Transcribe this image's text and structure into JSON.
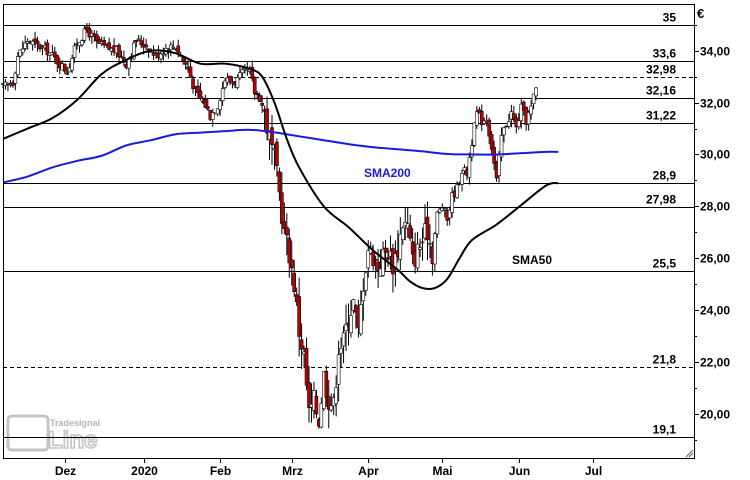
{
  "chart_data": {
    "type": "candlestick",
    "currency_label": "€",
    "ylim": [
      18.3,
      35.8
    ],
    "y_ticks": [
      {
        "value": 20,
        "label": "20,00"
      },
      {
        "value": 22,
        "label": "22,00"
      },
      {
        "value": 24,
        "label": "24,00"
      },
      {
        "value": 26,
        "label": "26,00"
      },
      {
        "value": 28,
        "label": "28,00"
      },
      {
        "value": 30,
        "label": "30,00"
      },
      {
        "value": 32,
        "label": "32,00"
      },
      {
        "value": 34,
        "label": "34,00"
      }
    ],
    "x_ticks": [
      {
        "value": 25,
        "label": "Dez"
      },
      {
        "value": 57,
        "label": "2020"
      },
      {
        "value": 88,
        "label": "Feb"
      },
      {
        "value": 117,
        "label": "Mrz"
      },
      {
        "value": 148,
        "label": "Apr"
      },
      {
        "value": 178,
        "label": "Mai"
      },
      {
        "value": 209,
        "label": "Jun"
      },
      {
        "value": 239,
        "label": "Jul"
      }
    ],
    "xlim": [
      0,
      280
    ],
    "levels": [
      {
        "value": 35,
        "label": "35",
        "style": "solid"
      },
      {
        "value": 33.6,
        "label": "33,6",
        "style": "solid"
      },
      {
        "value": 32.98,
        "label": "32,98",
        "style": "dashed"
      },
      {
        "value": 32.16,
        "label": "32,16",
        "style": "solid"
      },
      {
        "value": 31.22,
        "label": "31,22",
        "style": "solid"
      },
      {
        "value": 28.9,
        "label": "28,9",
        "style": "solid"
      },
      {
        "value": 27.98,
        "label": "27,98",
        "style": "solid"
      },
      {
        "value": 25.5,
        "label": "25,5",
        "style": "solid"
      },
      {
        "value": 21.8,
        "label": "21,8",
        "style": "dashed"
      },
      {
        "value": 19.1,
        "label": "19,1",
        "style": "solid"
      }
    ],
    "close_anchors": [
      [
        0,
        32.6
      ],
      [
        4,
        32.8
      ],
      [
        6,
        33.8
      ],
      [
        10,
        34.4
      ],
      [
        14,
        34.2
      ],
      [
        18,
        34.0
      ],
      [
        22,
        33.6
      ],
      [
        26,
        33.2
      ],
      [
        30,
        34.3
      ],
      [
        34,
        34.8
      ],
      [
        38,
        34.3
      ],
      [
        42,
        34.1
      ],
      [
        46,
        34.0
      ],
      [
        50,
        33.5
      ],
      [
        54,
        34.4
      ],
      [
        58,
        34.2
      ],
      [
        62,
        33.8
      ],
      [
        66,
        34.1
      ],
      [
        70,
        34.2
      ],
      [
        72,
        33.8
      ],
      [
        75,
        33.3
      ],
      [
        78,
        32.4
      ],
      [
        82,
        31.9
      ],
      [
        84,
        31.5
      ],
      [
        87,
        31.9
      ],
      [
        90,
        32.9
      ],
      [
        94,
        32.8
      ],
      [
        98,
        33.2
      ],
      [
        100,
        33.2
      ],
      [
        102,
        32.4
      ],
      [
        104,
        32.2
      ],
      [
        106,
        31.6
      ],
      [
        108,
        30.6
      ],
      [
        110,
        29.8
      ],
      [
        112,
        28.5
      ],
      [
        114,
        27.0
      ],
      [
        116,
        26.2
      ],
      [
        118,
        25.0
      ],
      [
        120,
        23.2
      ],
      [
        122,
        22.2
      ],
      [
        124,
        20.0
      ],
      [
        126,
        20.5
      ],
      [
        128,
        19.8
      ],
      [
        130,
        21.5
      ],
      [
        132,
        20.6
      ],
      [
        134,
        20.3
      ],
      [
        136,
        22.6
      ],
      [
        138,
        22.8
      ],
      [
        140,
        23.8
      ],
      [
        142,
        24.3
      ],
      [
        144,
        23.1
      ],
      [
        146,
        25.1
      ],
      [
        148,
        26.4
      ],
      [
        150,
        26.1
      ],
      [
        152,
        25.7
      ],
      [
        154,
        26.1
      ],
      [
        156,
        26.3
      ],
      [
        158,
        25.8
      ],
      [
        160,
        26.4
      ],
      [
        162,
        27.4
      ],
      [
        164,
        27.2
      ],
      [
        166,
        25.9
      ],
      [
        168,
        26.3
      ],
      [
        170,
        26.7
      ],
      [
        172,
        27.1
      ],
      [
        174,
        26.2
      ],
      [
        176,
        27.7
      ],
      [
        178,
        28.0
      ],
      [
        180,
        27.5
      ],
      [
        182,
        28.4
      ],
      [
        184,
        28.7
      ],
      [
        186,
        29.4
      ],
      [
        188,
        29.3
      ],
      [
        190,
        30.5
      ],
      [
        192,
        31.6
      ],
      [
        194,
        31.3
      ],
      [
        196,
        31.4
      ],
      [
        198,
        30.3
      ],
      [
        200,
        29.0
      ],
      [
        202,
        30.7
      ],
      [
        204,
        31.2
      ],
      [
        206,
        31.6
      ],
      [
        208,
        31.0
      ],
      [
        210,
        31.8
      ],
      [
        212,
        31.3
      ],
      [
        214,
        31.8
      ],
      [
        215,
        32.2
      ],
      [
        216,
        32.5
      ]
    ],
    "sma200": [
      [
        0,
        28.92
      ],
      [
        10,
        29.15
      ],
      [
        20,
        29.5
      ],
      [
        30,
        29.75
      ],
      [
        40,
        29.95
      ],
      [
        50,
        30.35
      ],
      [
        60,
        30.55
      ],
      [
        70,
        30.78
      ],
      [
        80,
        30.84
      ],
      [
        90,
        30.9
      ],
      [
        100,
        30.95
      ],
      [
        110,
        30.85
      ],
      [
        120,
        30.7
      ],
      [
        130,
        30.55
      ],
      [
        140,
        30.4
      ],
      [
        150,
        30.28
      ],
      [
        160,
        30.2
      ],
      [
        170,
        30.12
      ],
      [
        180,
        30.02
      ],
      [
        190,
        30.0
      ],
      [
        200,
        30.0
      ],
      [
        210,
        30.05
      ],
      [
        220,
        30.1
      ],
      [
        225,
        30.1
      ]
    ],
    "sma50": [
      [
        0,
        30.6
      ],
      [
        10,
        31.0
      ],
      [
        20,
        31.4
      ],
      [
        30,
        32.1
      ],
      [
        40,
        33.1
      ],
      [
        50,
        33.65
      ],
      [
        60,
        34.0
      ],
      [
        70,
        33.9
      ],
      [
        80,
        33.5
      ],
      [
        90,
        33.5
      ],
      [
        100,
        33.3
      ],
      [
        105,
        33.0
      ],
      [
        110,
        32.0
      ],
      [
        115,
        30.6
      ],
      [
        120,
        29.5
      ],
      [
        130,
        28.0
      ],
      [
        140,
        27.2
      ],
      [
        150,
        26.3
      ],
      [
        160,
        25.55
      ],
      [
        165,
        25.1
      ],
      [
        170,
        24.85
      ],
      [
        175,
        24.85
      ],
      [
        180,
        25.2
      ],
      [
        185,
        26.0
      ],
      [
        190,
        26.7
      ],
      [
        200,
        27.3
      ],
      [
        210,
        28.05
      ],
      [
        220,
        28.8
      ],
      [
        225,
        28.9
      ]
    ],
    "sma_labels": [
      {
        "name": "SMA200",
        "color": "#1a1adf"
      },
      {
        "name": "SMA50",
        "color": "#000000"
      }
    ],
    "watermark": {
      "brand": "Tradesignal",
      "suffix": "Line"
    }
  }
}
